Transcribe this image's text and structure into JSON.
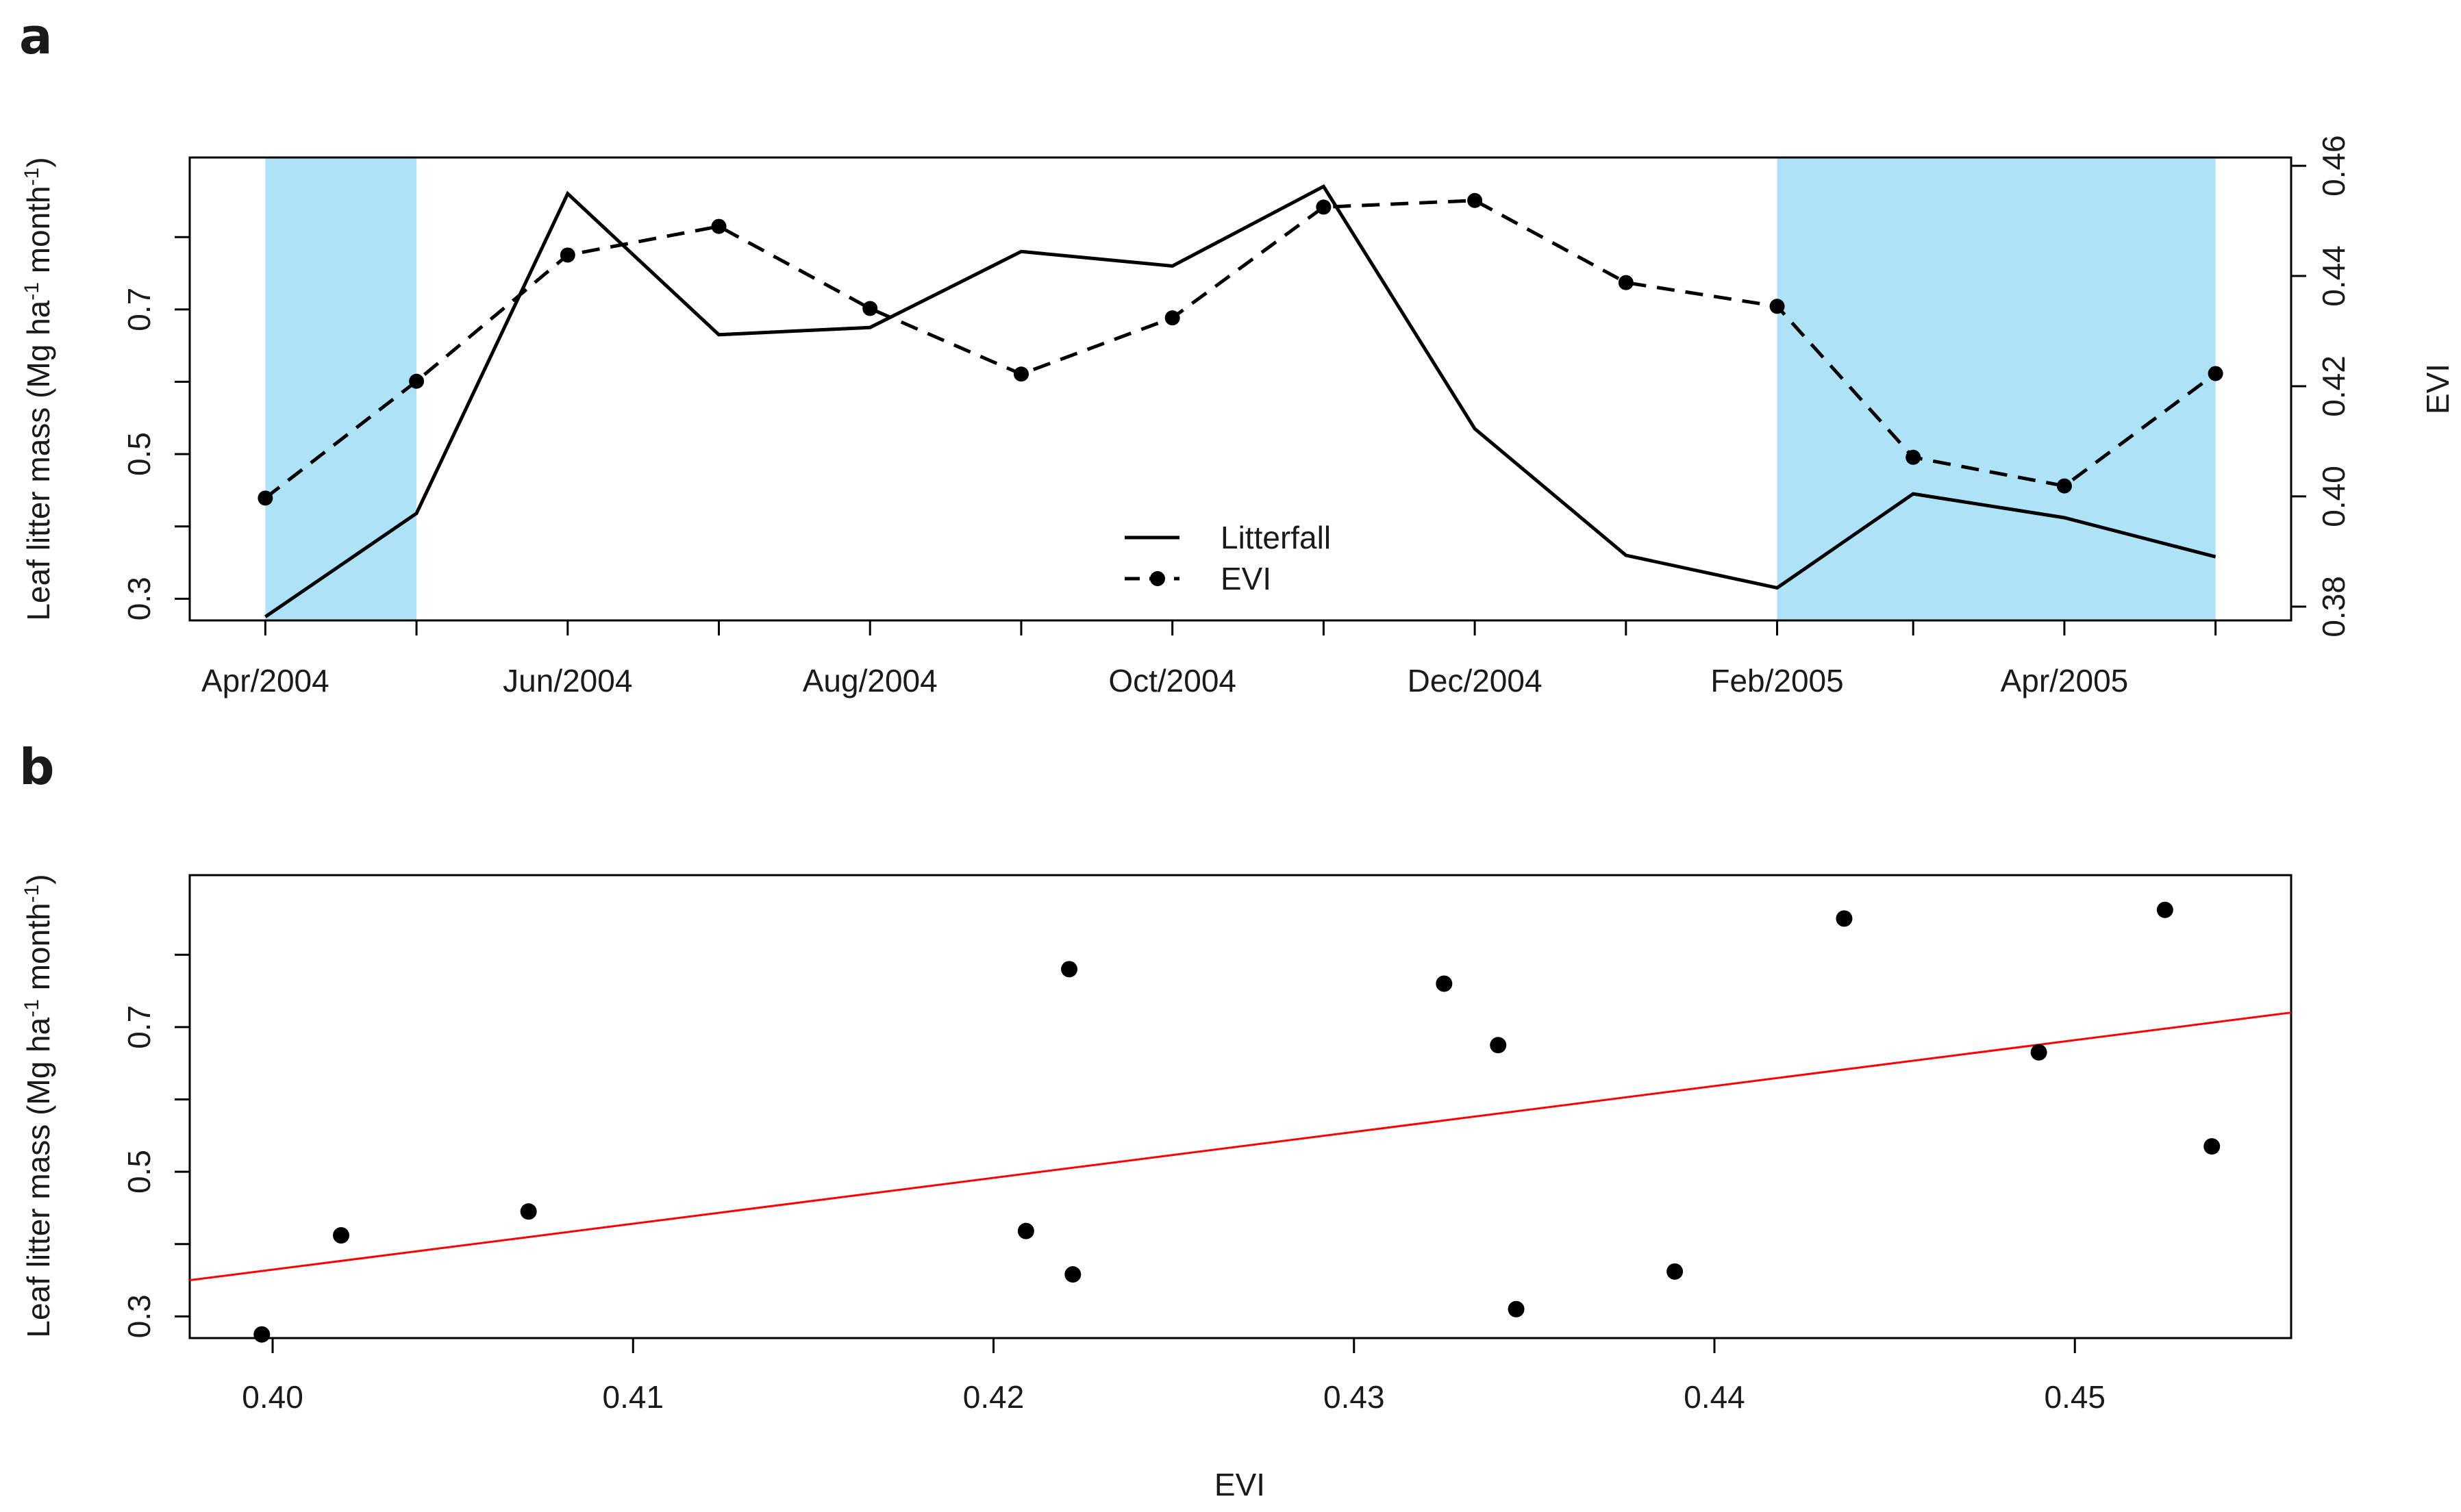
{
  "colors": {
    "wet_season_shade": "#aee3f7",
    "litterfall_line": "#000000",
    "evi_line": "#000000",
    "regression_line": "#ff0000"
  },
  "chart_data": [
    {
      "panel": "a",
      "type": "line",
      "ylabel_left": "Leaf litter mass (Mg ha-1 month-1)",
      "ylabel_left_parts": {
        "base": "Leaf litter mass  (Mg ha",
        "exp1": "-1",
        "mid": " month",
        "exp2": "-1",
        "end": ")"
      },
      "ylabel_right": "EVI",
      "x_tick_labels": [
        "Apr/2004",
        "Jun/2004",
        "Aug/2004",
        "Oct/2004",
        "Dec/2004",
        "Feb/2005",
        "Apr/2005"
      ],
      "y_left_ticks": [
        0.3,
        0.5,
        0.7
      ],
      "y_left_tick_labels": [
        "0.3",
        "0.5",
        "0.7"
      ],
      "y_left_range": [
        0.27,
        0.91
      ],
      "y_right_ticks": [
        0.38,
        0.4,
        0.42,
        0.44,
        0.46
      ],
      "y_right_tick_labels": [
        "0.38",
        "0.40",
        "0.42",
        "0.44",
        "0.46"
      ],
      "y_right_range": [
        0.3775,
        0.4615
      ],
      "x_month_index_range": [
        -0.5,
        13.4
      ],
      "shaded_periods_month_index": [
        [
          0,
          1
        ],
        [
          10,
          12.9
        ]
      ],
      "series": [
        {
          "name": "Litterfall",
          "axis": "left",
          "style": "solid",
          "x": [
            0,
            1,
            2,
            3,
            4,
            5,
            6,
            7,
            8,
            9,
            10,
            10.9,
            11.9,
            12.9
          ],
          "values": [
            0.275,
            0.418,
            0.86,
            0.665,
            0.675,
            0.78,
            0.76,
            0.87,
            0.535,
            0.36,
            0.315,
            0.445,
            0.412,
            0.358
          ]
        },
        {
          "name": "EVI",
          "axis": "right",
          "style": "dashed-points",
          "x": [
            0,
            1,
            2,
            3,
            4,
            5,
            6,
            7,
            8,
            9,
            10,
            10.9,
            11.9,
            12.9
          ],
          "values": [
            0.3997,
            0.4209,
            0.4438,
            0.449,
            0.4341,
            0.4222,
            0.4324,
            0.4525,
            0.4537,
            0.4388,
            0.4345,
            0.4071,
            0.4019,
            0.4223
          ]
        }
      ],
      "legend": {
        "position": "bottom-center",
        "entries": [
          "Litterfall",
          "EVI"
        ]
      }
    },
    {
      "panel": "b",
      "type": "scatter",
      "xlabel": "EVI",
      "ylabel": "Leaf litter mass (Mg ha-1 month-1)",
      "ylabel_parts": {
        "base": "Leaf litter mass (Mg ha",
        "exp1": "-1",
        "mid": " month",
        "exp2": "-1",
        "end": ")"
      },
      "x_ticks": [
        0.4,
        0.41,
        0.42,
        0.43,
        0.44,
        0.45
      ],
      "x_tick_labels": [
        "0.40",
        "0.41",
        "0.42",
        "0.43",
        "0.44",
        "0.45"
      ],
      "y_ticks": [
        0.3,
        0.5,
        0.7
      ],
      "y_tick_labels": [
        "0.3",
        "0.5",
        "0.7"
      ],
      "xlim": [
        0.3977,
        0.456
      ],
      "ylim": [
        0.27,
        0.91
      ],
      "points": [
        {
          "x": 0.3997,
          "y": 0.275
        },
        {
          "x": 0.4019,
          "y": 0.412
        },
        {
          "x": 0.4071,
          "y": 0.445
        },
        {
          "x": 0.4209,
          "y": 0.418
        },
        {
          "x": 0.4221,
          "y": 0.78
        },
        {
          "x": 0.4222,
          "y": 0.358
        },
        {
          "x": 0.4325,
          "y": 0.76
        },
        {
          "x": 0.434,
          "y": 0.675
        },
        {
          "x": 0.4345,
          "y": 0.31
        },
        {
          "x": 0.4389,
          "y": 0.362
        },
        {
          "x": 0.4436,
          "y": 0.85
        },
        {
          "x": 0.449,
          "y": 0.665
        },
        {
          "x": 0.4525,
          "y": 0.862
        },
        {
          "x": 0.4538,
          "y": 0.535
        }
      ],
      "regression": {
        "x": [
          0.3977,
          0.456
        ],
        "y": [
          0.35,
          0.72
        ]
      }
    }
  ]
}
